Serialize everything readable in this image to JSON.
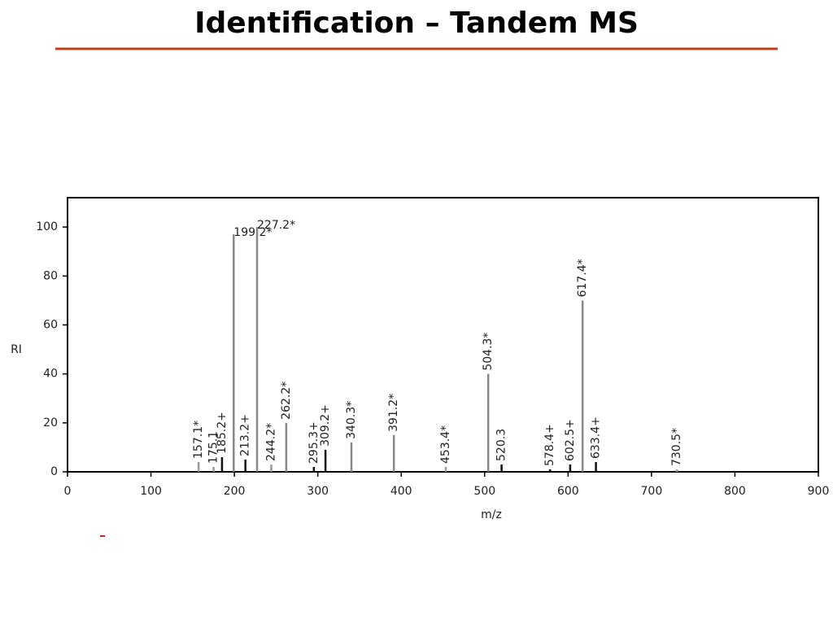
{
  "slide": {
    "title": "Identification – Tandem MS"
  },
  "chart_data": {
    "type": "stem",
    "x_label": "m/z",
    "y_label": "RI",
    "x": [
      157.1,
      175.1,
      185.2,
      199.2,
      213.2,
      227.2,
      244.2,
      262.2,
      295.3,
      309.2,
      340.3,
      391.2,
      453.4,
      504.3,
      520.3,
      578.4,
      602.5,
      617.4,
      633.4,
      730.5
    ],
    "values": [
      4,
      2,
      6,
      97,
      5,
      100,
      3,
      20,
      2,
      9,
      12,
      15,
      2,
      40,
      3,
      1,
      3,
      70,
      4,
      1
    ],
    "labels": [
      "157.1*",
      "175.1",
      "185.2+",
      "199.2*",
      "213.2+",
      "227.2*",
      "244.2*",
      "262.2*",
      "295.3+",
      "309.2+",
      "340.3*",
      "391.2*",
      "453.4*",
      "504.3*",
      "520.3",
      "578.4+",
      "602.5+",
      "617.4*",
      "633.4+",
      "730.5*"
    ],
    "colors": [
      "#999999",
      "#999999",
      "#111111",
      "#888888",
      "#111111",
      "#888888",
      "#999999",
      "#888888",
      "#111111",
      "#111111",
      "#888888",
      "#888888",
      "#999999",
      "#888888",
      "#111111",
      "#111111",
      "#111111",
      "#888888",
      "#111111",
      "#999999"
    ],
    "xlim": [
      0,
      900
    ],
    "xticks": [
      0,
      100,
      200,
      300,
      400,
      500,
      600,
      700,
      800,
      900
    ],
    "ylim": [
      0,
      112
    ],
    "yticks": [
      0,
      20,
      40,
      60,
      80,
      100
    ]
  }
}
